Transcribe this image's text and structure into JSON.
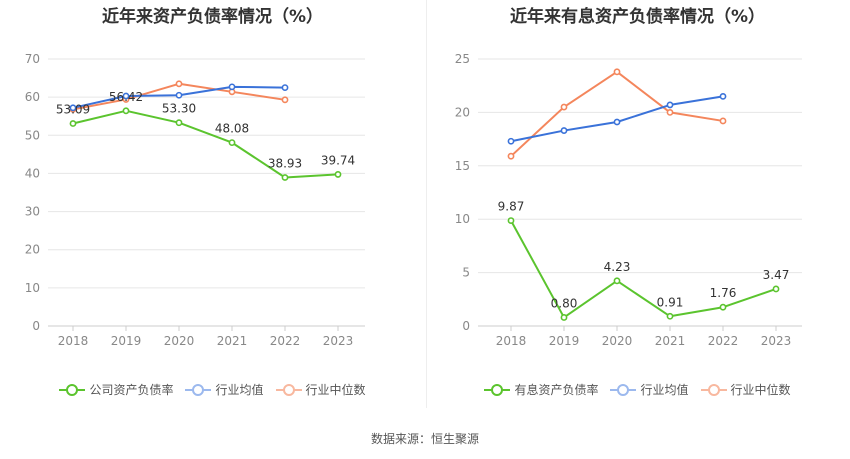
{
  "colors": {
    "company": "#5bc42e",
    "industry_avg": "#3a72d9",
    "industry_median": "#f4865c",
    "grid": "#e6e6e6",
    "axis_text": "#888888"
  },
  "chart_data": [
    {
      "type": "line",
      "title": "近年来资产负债率情况（%）",
      "categories": [
        "2018",
        "2019",
        "2020",
        "2021",
        "2022",
        "2023"
      ],
      "ylim": [
        0,
        70
      ],
      "yticks": [
        0,
        10,
        20,
        30,
        40,
        50,
        60,
        70
      ],
      "series": [
        {
          "name": "公司资产负债率",
          "key": "company",
          "values": [
            53.09,
            56.42,
            53.3,
            48.08,
            38.93,
            39.74
          ],
          "labels": [
            "53.09",
            "56.42",
            "53.30",
            "48.08",
            "38.93",
            "39.74"
          ]
        },
        {
          "name": "行业均值",
          "key": "industry_avg",
          "values": [
            57.2,
            60.3,
            60.5,
            62.7,
            62.5,
            null
          ]
        },
        {
          "name": "行业中位数",
          "key": "industry_median",
          "values": [
            56.8,
            59.4,
            63.5,
            61.4,
            59.3,
            null
          ]
        }
      ]
    },
    {
      "type": "line",
      "title": "近年来有息资产负债率情况（%）",
      "categories": [
        "2018",
        "2019",
        "2020",
        "2021",
        "2022",
        "2023"
      ],
      "ylim": [
        0,
        25
      ],
      "yticks": [
        0,
        5,
        10,
        15,
        20,
        25
      ],
      "series": [
        {
          "name": "有息资产负债率",
          "key": "company",
          "values": [
            9.87,
            0.8,
            4.23,
            0.91,
            1.76,
            3.47
          ],
          "labels": [
            "9.87",
            "0.80",
            "4.23",
            "0.91",
            "1.76",
            "3.47"
          ]
        },
        {
          "name": "行业均值",
          "key": "industry_avg",
          "values": [
            17.3,
            18.3,
            19.1,
            20.7,
            21.5,
            null
          ]
        },
        {
          "name": "行业中位数",
          "key": "industry_median",
          "values": [
            15.9,
            20.5,
            23.8,
            20.0,
            19.2,
            null
          ]
        }
      ]
    }
  ],
  "source": "数据来源：恒生聚源"
}
